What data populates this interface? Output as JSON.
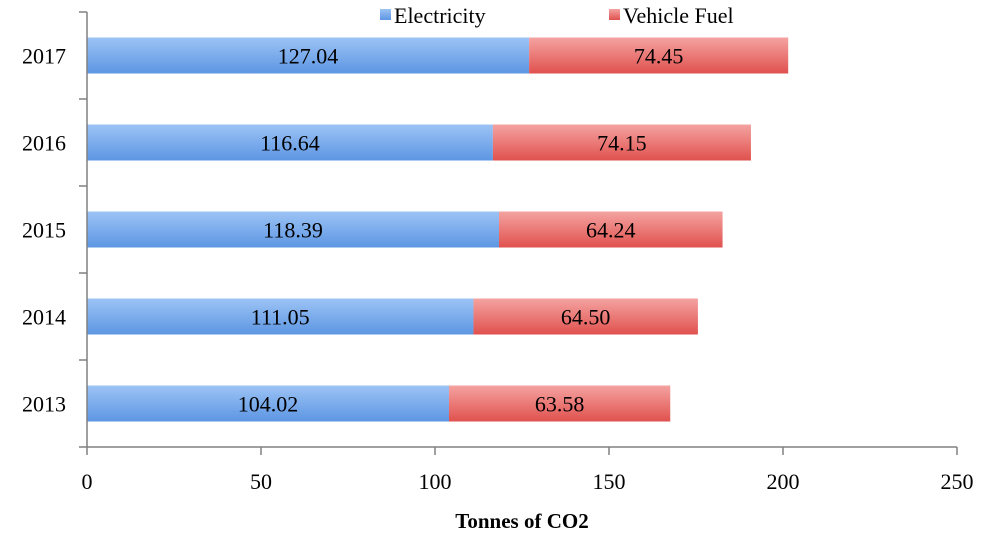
{
  "chart_data": {
    "type": "bar",
    "orientation": "horizontal",
    "stacked": true,
    "categories": [
      "2013",
      "2014",
      "2015",
      "2016",
      "2017"
    ],
    "series": [
      {
        "name": "Electricity",
        "values": [
          104.02,
          111.05,
          118.39,
          116.64,
          127.04
        ],
        "labels": [
          "104.02",
          "111.05",
          "118.39",
          "116.64",
          "127.04"
        ],
        "color": "#6FA3E8"
      },
      {
        "name": "Vehicle Fuel",
        "values": [
          63.58,
          64.5,
          64.24,
          74.15,
          74.45
        ],
        "labels": [
          "63.58",
          "64.50",
          "64.24",
          "74.15",
          "74.45"
        ],
        "color": "#E86A66"
      }
    ],
    "xlabel": "Tonnes of CO2",
    "ylabel": "",
    "xlim": [
      0,
      250
    ],
    "xticks": [
      "0",
      "50",
      "100",
      "150",
      "200",
      "250"
    ],
    "grid": false,
    "legend_position": "top"
  }
}
